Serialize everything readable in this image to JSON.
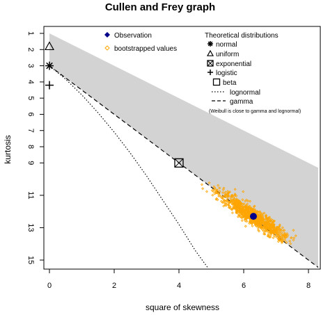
{
  "chart_data": {
    "type": "scatter",
    "title": "Cullen and Frey graph",
    "xlabel": "square of skewness",
    "ylabel": "kurtosis",
    "xlim": [
      0,
      8.3
    ],
    "ylim": [
      15.5,
      0.6
    ],
    "y_axis_reversed": true,
    "xticks": [
      0,
      2,
      4,
      6,
      8
    ],
    "yticks": [
      1,
      2,
      3,
      4,
      5,
      6,
      7,
      8,
      9,
      11,
      13,
      15
    ],
    "grid": false,
    "observation": {
      "x": 6.3,
      "y": 12.3,
      "color": "#00008B"
    },
    "bootstrap": {
      "center": {
        "x": 6.3,
        "y": 12.3
      },
      "x_range": [
        4.7,
        7.7
      ],
      "y_range": [
        10.2,
        14.0
      ],
      "color": "#FFA500"
    },
    "theoretical_points": [
      {
        "name": "normal",
        "x": 0,
        "y": 3,
        "marker": "*"
      },
      {
        "name": "uniform",
        "x": 0,
        "y": 1.8,
        "marker": "triangle"
      },
      {
        "name": "exponential",
        "x": 4,
        "y": 9,
        "marker": "boxed-x"
      },
      {
        "name": "logistic",
        "x": 0,
        "y": 4.2,
        "marker": "+"
      }
    ],
    "beta_region": {
      "upper": [
        [
          0,
          1
        ],
        [
          8.3,
          9.3
        ]
      ],
      "lower": [
        [
          0,
          3
        ],
        [
          8.3,
          15.45
        ]
      ],
      "color": "#D3D3D3"
    },
    "lognormal_curve": [
      [
        0,
        3
      ],
      [
        0.5,
        3.83
      ],
      [
        1,
        4.8
      ],
      [
        1.5,
        5.9
      ],
      [
        2,
        7.1
      ],
      [
        2.5,
        8.4
      ],
      [
        3,
        9.8
      ],
      [
        3.5,
        11.3
      ],
      [
        4,
        12.8
      ],
      [
        4.5,
        14.4
      ],
      [
        4.9,
        15.5
      ]
    ],
    "gamma_line": [
      [
        0,
        3
      ],
      [
        8.3,
        15.45
      ]
    ],
    "legend": {
      "left": {
        "placement": "top-center",
        "entries": [
          {
            "label": "Observation",
            "marker": "filled-diamond",
            "color": "#00008B"
          },
          {
            "label": "bootstrapped values",
            "marker": "open-diamond",
            "color": "#FFA500"
          }
        ]
      },
      "right": {
        "placement": "top-right",
        "title": "Theoretical distributions",
        "entries": [
          {
            "label": "normal",
            "marker": "*"
          },
          {
            "label": "uniform",
            "marker": "triangle"
          },
          {
            "label": "exponential",
            "marker": "boxed-x"
          },
          {
            "label": "logistic",
            "marker": "+"
          },
          {
            "label": "beta",
            "marker": "square"
          },
          {
            "label": "lognormal",
            "marker": "dotted"
          },
          {
            "label": "gamma",
            "marker": "dashed"
          }
        ],
        "note": "(Weibull is close to gamma and lognormal)"
      }
    }
  }
}
